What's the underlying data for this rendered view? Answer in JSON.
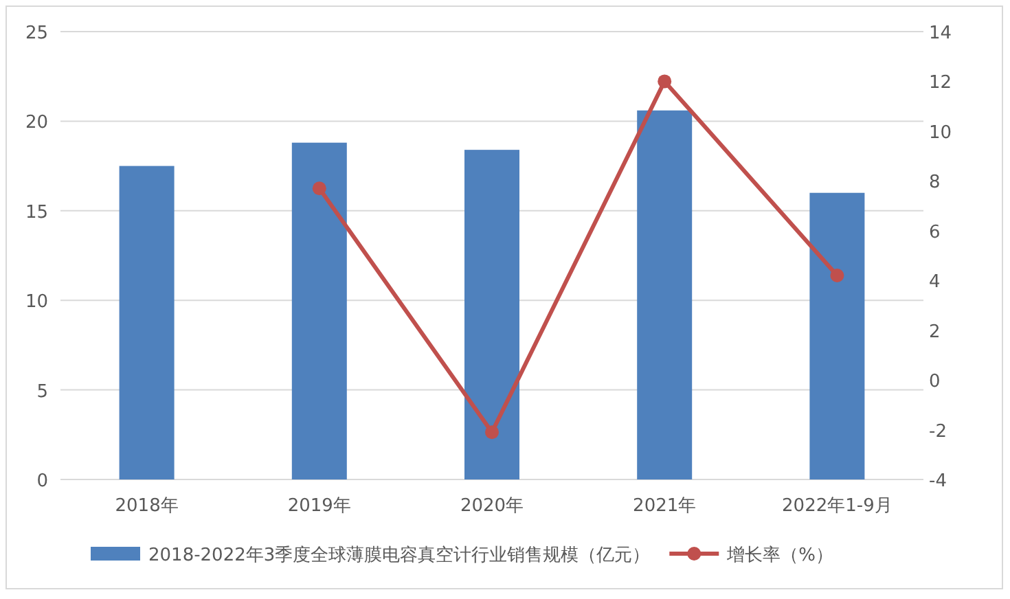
{
  "chart_data": {
    "type": "bar",
    "categories": [
      "2018年",
      "2019年",
      "2020年",
      "2021年",
      "2022年1-9月"
    ],
    "series": [
      {
        "name": "2018-2022年3季度全球薄膜电容真空计行业销售规模（亿元）",
        "color": "#4f81bd",
        "values": [
          17.5,
          18.8,
          18.4,
          20.6,
          16.0
        ]
      },
      {
        "name": "增长率（%）",
        "type": "line",
        "axis": "y2",
        "color": "#c0504d",
        "marker": "circle",
        "values": [
          null,
          7.7,
          -2.1,
          12.0,
          4.2
        ]
      }
    ],
    "ylim": [
      0,
      25
    ],
    "yticks": [
      0,
      5,
      10,
      15,
      20,
      25
    ],
    "y2lim": [
      -4,
      14
    ],
    "y2ticks": [
      -4,
      -2,
      0,
      2,
      4,
      6,
      8,
      10,
      12,
      14
    ],
    "grid": "y",
    "legend": "bottom"
  }
}
